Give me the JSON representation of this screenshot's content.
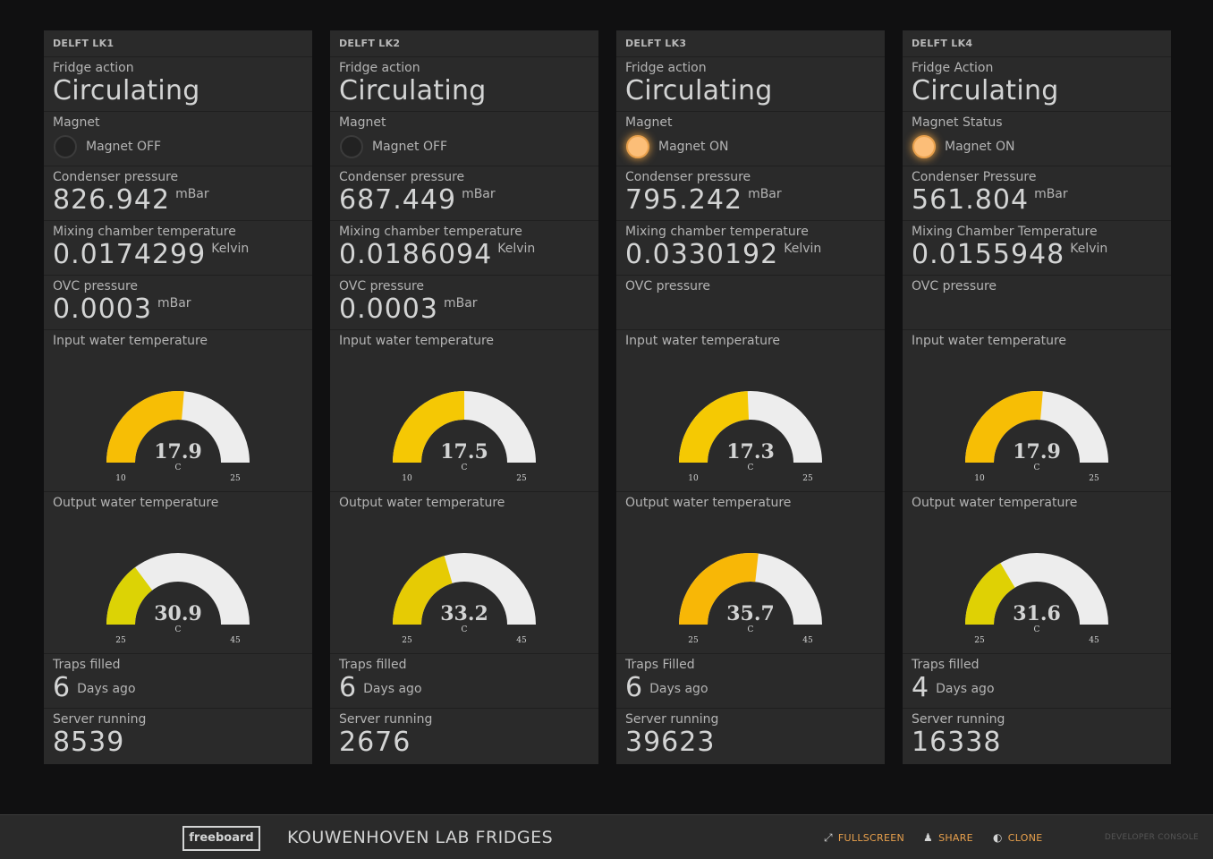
{
  "dashboard": {
    "title": "KOUWENHOVEN LAB FRIDGES",
    "logo": "freeboard",
    "fullscreen_label": "FULLSCREEN",
    "fullscreen_icon": "expand-icon",
    "share_label": "SHARE",
    "share_icon": "user-icon",
    "clone_label": "CLONE",
    "clone_icon": "half-circle-icon",
    "dev_console_label": "DEVELOPER CONSOLE"
  },
  "colors": {
    "background": "#101011",
    "pane": "#2a2a2a",
    "text": "#d3d4d4",
    "accent": "#e8a04c",
    "gauge_empty": "#ededed",
    "light_on": "#fcbe78"
  },
  "panes": [
    {
      "title": "DELFT LK1",
      "fridge": {
        "title": "Fridge action",
        "value": "Circulating"
      },
      "magnet": {
        "title": "Magnet",
        "label": "Magnet OFF",
        "on": false
      },
      "condenser": {
        "title": "Condenser pressure",
        "value": "826.942",
        "units": "mBar"
      },
      "mixing": {
        "title": "Mixing chamber temperature",
        "value": "0.0174299",
        "units": "Kelvin"
      },
      "ovc": {
        "title": "OVC pressure",
        "value": "0.0003",
        "units": "mBar"
      },
      "input": {
        "title": "Input water temperature",
        "value": "17.9",
        "units": "C",
        "min": "10",
        "max": "25",
        "fraction": 0.527,
        "color": "#f7be05"
      },
      "output": {
        "title": "Output water temperature",
        "value": "30.9",
        "units": "C",
        "min": "25",
        "max": "45",
        "fraction": 0.295,
        "color": "#dcd305"
      },
      "traps": {
        "title": "Traps filled",
        "value": "6",
        "units": "Days ago"
      },
      "server": {
        "title": "Server running",
        "value": "8539"
      }
    },
    {
      "title": "DELFT LK2",
      "fridge": {
        "title": "Fridge action",
        "value": "Circulating"
      },
      "magnet": {
        "title": "Magnet",
        "label": "Magnet OFF",
        "on": false
      },
      "condenser": {
        "title": "Condenser pressure",
        "value": "687.449",
        "units": "mBar"
      },
      "mixing": {
        "title": "Mixing chamber temperature",
        "value": "0.0186094",
        "units": "Kelvin"
      },
      "ovc": {
        "title": "OVC pressure",
        "value": "0.0003",
        "units": "mBar"
      },
      "input": {
        "title": "Input water temperature",
        "value": "17.5",
        "units": "C",
        "min": "10",
        "max": "25",
        "fraction": 0.5,
        "color": "#f5c804"
      },
      "output": {
        "title": "Output water temperature",
        "value": "33.2",
        "units": "C",
        "min": "25",
        "max": "45",
        "fraction": 0.41,
        "color": "#e6cb04"
      },
      "traps": {
        "title": "Traps filled",
        "value": "6",
        "units": "Days ago"
      },
      "server": {
        "title": "Server running",
        "value": "2676"
      }
    },
    {
      "title": "DELFT LK3",
      "fridge": {
        "title": "Fridge action",
        "value": "Circulating"
      },
      "magnet": {
        "title": "Magnet",
        "label": "Magnet ON",
        "on": true
      },
      "condenser": {
        "title": "Condenser pressure",
        "value": "795.242",
        "units": "mBar"
      },
      "mixing": {
        "title": "Mixing chamber temperature",
        "value": "0.0330192",
        "units": "Kelvin"
      },
      "ovc": {
        "title": "OVC pressure",
        "value": "",
        "units": ""
      },
      "input": {
        "title": "Input water temperature",
        "value": "17.3",
        "units": "C",
        "min": "10",
        "max": "25",
        "fraction": 0.487,
        "color": "#f5c903"
      },
      "output": {
        "title": "Output water temperature",
        "value": "35.7",
        "units": "C",
        "min": "25",
        "max": "45",
        "fraction": 0.535,
        "color": "#f8b706"
      },
      "traps": {
        "title": "Traps Filled",
        "value": "6",
        "units": "Days ago"
      },
      "server": {
        "title": "Server running",
        "value": "39623"
      }
    },
    {
      "title": "DELFT LK4",
      "fridge": {
        "title": "Fridge Action",
        "value": "Circulating"
      },
      "magnet": {
        "title": "Magnet Status",
        "label": "Magnet ON",
        "on": true
      },
      "condenser": {
        "title": "Condenser Pressure",
        "value": "561.804",
        "units": "mBar"
      },
      "mixing": {
        "title": "Mixing Chamber Temperature",
        "value": "0.0155948",
        "units": "Kelvin"
      },
      "ovc": {
        "title": "OVC pressure",
        "value": "",
        "units": ""
      },
      "input": {
        "title": "Input water temperature",
        "value": "17.9",
        "units": "C",
        "min": "10",
        "max": "25",
        "fraction": 0.527,
        "color": "#f7be05"
      },
      "output": {
        "title": "Output water temperature",
        "value": "31.6",
        "units": "C",
        "min": "25",
        "max": "45",
        "fraction": 0.33,
        "color": "#dfd104"
      },
      "traps": {
        "title": "Traps filled",
        "value": "4",
        "units": "Days ago"
      },
      "server": {
        "title": "Server running",
        "value": "16338"
      }
    }
  ]
}
